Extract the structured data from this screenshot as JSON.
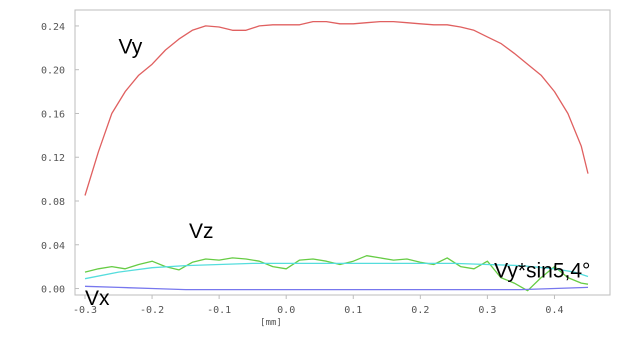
{
  "chart_data": {
    "type": "line",
    "xlabel": "[mm]",
    "ylabel": "",
    "xlim": [
      -0.3,
      0.45
    ],
    "ylim": [
      -0.005,
      0.25
    ],
    "x_ticks": [
      "-0.3",
      "-0.2",
      "-0.1",
      "0.0",
      "0.1",
      "0.2",
      "0.3",
      "0.4"
    ],
    "y_ticks": [
      "0.00",
      "0.04",
      "0.08",
      "0.12",
      "0.16",
      "0.20",
      "0.24"
    ],
    "grid": false,
    "series": [
      {
        "name": "Vy",
        "color": "#e06060",
        "label_at": [
          -0.25,
          0.215
        ],
        "x": [
          -0.3,
          -0.28,
          -0.26,
          -0.24,
          -0.22,
          -0.2,
          -0.18,
          -0.16,
          -0.14,
          -0.12,
          -0.1,
          -0.08,
          -0.06,
          -0.04,
          -0.02,
          0.0,
          0.02,
          0.04,
          0.06,
          0.08,
          0.1,
          0.12,
          0.14,
          0.16,
          0.18,
          0.2,
          0.22,
          0.24,
          0.26,
          0.28,
          0.3,
          0.32,
          0.34,
          0.36,
          0.38,
          0.4,
          0.42,
          0.44,
          0.45
        ],
        "values": [
          0.085,
          0.125,
          0.16,
          0.18,
          0.195,
          0.205,
          0.218,
          0.228,
          0.236,
          0.24,
          0.239,
          0.236,
          0.236,
          0.24,
          0.241,
          0.241,
          0.241,
          0.244,
          0.244,
          0.242,
          0.242,
          0.243,
          0.244,
          0.244,
          0.243,
          0.242,
          0.241,
          0.241,
          0.239,
          0.236,
          0.23,
          0.224,
          0.215,
          0.205,
          0.195,
          0.18,
          0.16,
          0.13,
          0.105
        ]
      },
      {
        "name": "Vz",
        "color": "#66cc44",
        "label_at": [
          -0.145,
          0.046
        ],
        "x": [
          -0.3,
          -0.28,
          -0.26,
          -0.24,
          -0.22,
          -0.2,
          -0.18,
          -0.16,
          -0.14,
          -0.12,
          -0.1,
          -0.08,
          -0.06,
          -0.04,
          -0.02,
          0.0,
          0.02,
          0.04,
          0.06,
          0.08,
          0.1,
          0.12,
          0.14,
          0.16,
          0.18,
          0.2,
          0.22,
          0.24,
          0.26,
          0.28,
          0.3,
          0.32,
          0.34,
          0.36,
          0.38,
          0.4,
          0.42,
          0.44,
          0.45
        ],
        "values": [
          0.015,
          0.018,
          0.02,
          0.018,
          0.022,
          0.025,
          0.02,
          0.017,
          0.024,
          0.027,
          0.026,
          0.028,
          0.027,
          0.025,
          0.02,
          0.018,
          0.026,
          0.027,
          0.025,
          0.022,
          0.025,
          0.03,
          0.028,
          0.026,
          0.027,
          0.024,
          0.022,
          0.028,
          0.02,
          0.018,
          0.025,
          0.01,
          0.005,
          -0.002,
          0.01,
          0.02,
          0.01,
          0.005,
          0.004
        ]
      },
      {
        "name": "Vy*sin5,4°",
        "color": "#55dddd",
        "label_at": [
          0.31,
          0.01
        ],
        "x": [
          -0.3,
          -0.25,
          -0.2,
          -0.15,
          -0.1,
          -0.05,
          0.0,
          0.05,
          0.1,
          0.15,
          0.2,
          0.25,
          0.3,
          0.35,
          0.4,
          0.43,
          0.45
        ],
        "values": [
          0.009,
          0.015,
          0.019,
          0.021,
          0.022,
          0.023,
          0.023,
          0.023,
          0.023,
          0.023,
          0.023,
          0.023,
          0.022,
          0.021,
          0.018,
          0.015,
          0.011
        ]
      },
      {
        "name": "Vx",
        "color": "#7777ee",
        "label_at": [
          -0.3,
          -0.015
        ],
        "x": [
          -0.3,
          -0.25,
          -0.2,
          -0.15,
          -0.1,
          -0.05,
          0.0,
          0.05,
          0.1,
          0.15,
          0.2,
          0.25,
          0.3,
          0.35,
          0.4,
          0.45
        ],
        "values": [
          0.002,
          0.001,
          0.0,
          -0.001,
          -0.001,
          -0.001,
          -0.001,
          -0.001,
          -0.001,
          -0.001,
          -0.001,
          -0.001,
          -0.001,
          -0.001,
          0.0,
          0.001
        ]
      }
    ]
  }
}
